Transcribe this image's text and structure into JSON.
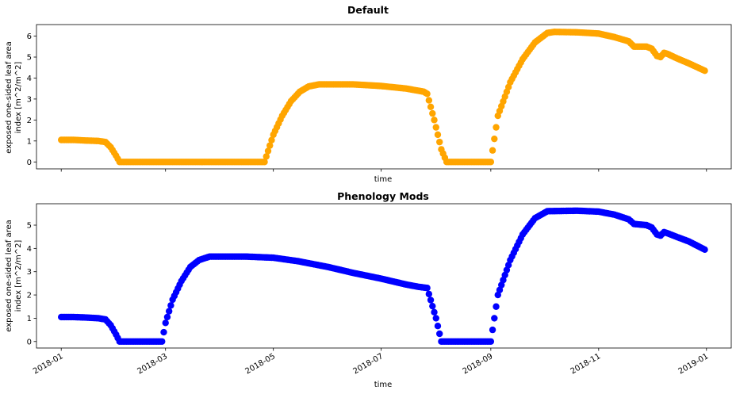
{
  "chart_data": [
    {
      "type": "scatter",
      "title": "Default",
      "xlabel": "time",
      "ylabel": "exposed one-sided leaf area index [m^2/m^2]",
      "ylabel_lines": [
        "exposed one-sided leaf area",
        "index [m^2/m^2]"
      ],
      "xlim": [
        "2017-12-18",
        "2019-01-15"
      ],
      "ylim": [
        -0.33,
        6.55
      ],
      "x_tick_labels_shown": false,
      "yticks": [
        "0",
        "1",
        "2",
        "3",
        "4",
        "5",
        "6"
      ],
      "color": "#ffa500",
      "series": [
        {
          "x": [
            "2018-01-01",
            "2018-01-08",
            "2018-01-15",
            "2018-01-22",
            "2018-01-26",
            "2018-01-29",
            "2018-02-01",
            "2018-02-03",
            "2018-03-01",
            "2018-04-15",
            "2018-04-26",
            "2018-05-01",
            "2018-05-06",
            "2018-05-11",
            "2018-05-16",
            "2018-05-21",
            "2018-05-27",
            "2018-06-15",
            "2018-07-01",
            "2018-07-15",
            "2018-07-25",
            "2018-07-27",
            "2018-07-31",
            "2018-08-04",
            "2018-08-07",
            "2018-08-20",
            "2018-09-01",
            "2018-09-05",
            "2018-09-12",
            "2018-09-19",
            "2018-09-26",
            "2018-10-03",
            "2018-10-07",
            "2018-10-20",
            "2018-11-01",
            "2018-11-10",
            "2018-11-18",
            "2018-11-21",
            "2018-11-28",
            "2018-12-01",
            "2018-12-04",
            "2018-12-06",
            "2018-12-08",
            "2018-12-10",
            "2018-12-15",
            "2018-12-22",
            "2018-12-31"
          ],
          "y": [
            1.05,
            1.05,
            1.02,
            1.0,
            0.95,
            0.7,
            0.3,
            0.0,
            0.0,
            0.0,
            0.0,
            1.3,
            2.2,
            2.9,
            3.35,
            3.6,
            3.7,
            3.7,
            3.62,
            3.5,
            3.35,
            3.25,
            2.0,
            0.6,
            0.0,
            0.0,
            0.0,
            2.2,
            3.8,
            4.9,
            5.7,
            6.15,
            6.2,
            6.18,
            6.12,
            5.95,
            5.75,
            5.5,
            5.5,
            5.4,
            5.05,
            5.0,
            5.2,
            5.15,
            4.95,
            4.7,
            4.35
          ]
        }
      ]
    },
    {
      "type": "scatter",
      "title": "Phenology Mods",
      "xlabel": "time",
      "ylabel": "exposed one-sided leaf area index [m^2/m^2]",
      "ylabel_lines": [
        "exposed one-sided leaf area",
        "index [m^2/m^2]"
      ],
      "xlim": [
        "2017-12-18",
        "2019-01-15"
      ],
      "ylim": [
        -0.28,
        5.92
      ],
      "xticks": [
        "2018-01-01",
        "2018-03-01",
        "2018-05-01",
        "2018-07-01",
        "2018-09-01",
        "2018-11-01",
        "2019-01-01"
      ],
      "xtick_labels": [
        "2018-01",
        "2018-03",
        "2018-05",
        "2018-07",
        "2018-09",
        "2018-11",
        "2019-01"
      ],
      "yticks": [
        "0",
        "1",
        "2",
        "3",
        "4",
        "5"
      ],
      "color": "#0000ff",
      "series": [
        {
          "x": [
            "2018-01-01",
            "2018-01-08",
            "2018-01-15",
            "2018-01-22",
            "2018-01-26",
            "2018-01-29",
            "2018-02-01",
            "2018-02-03",
            "2018-02-27",
            "2018-03-01",
            "2018-03-05",
            "2018-03-10",
            "2018-03-15",
            "2018-03-20",
            "2018-03-26",
            "2018-04-15",
            "2018-05-01",
            "2018-05-15",
            "2018-06-01",
            "2018-06-15",
            "2018-07-01",
            "2018-07-15",
            "2018-07-22",
            "2018-07-27",
            "2018-08-01",
            "2018-08-04",
            "2018-08-20",
            "2018-09-01",
            "2018-09-05",
            "2018-09-12",
            "2018-09-19",
            "2018-09-26",
            "2018-10-03",
            "2018-10-20",
            "2018-11-01",
            "2018-11-10",
            "2018-11-18",
            "2018-11-21",
            "2018-11-28",
            "2018-12-01",
            "2018-12-04",
            "2018-12-06",
            "2018-12-08",
            "2018-12-10",
            "2018-12-15",
            "2018-12-22",
            "2018-12-31"
          ],
          "y": [
            1.05,
            1.05,
            1.03,
            1.0,
            0.95,
            0.7,
            0.3,
            0.0,
            0.0,
            0.8,
            1.8,
            2.6,
            3.2,
            3.5,
            3.65,
            3.65,
            3.6,
            3.45,
            3.2,
            2.95,
            2.7,
            2.45,
            2.35,
            2.3,
            1.0,
            0.0,
            0.0,
            0.0,
            2.0,
            3.5,
            4.6,
            5.3,
            5.6,
            5.62,
            5.58,
            5.45,
            5.25,
            5.05,
            5.0,
            4.9,
            4.6,
            4.55,
            4.7,
            4.65,
            4.5,
            4.3,
            3.95
          ]
        }
      ]
    }
  ]
}
